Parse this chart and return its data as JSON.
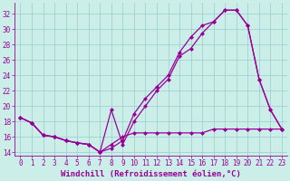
{
  "xlabel": "Windchill (Refroidissement éolien,°C)",
  "bg_color": "#cceee8",
  "line_color": "#990099",
  "grid_color": "#99cccc",
  "xlim": [
    -0.5,
    23.5
  ],
  "ylim": [
    13.5,
    33.5
  ],
  "xticks": [
    0,
    1,
    2,
    3,
    4,
    5,
    6,
    7,
    8,
    9,
    10,
    11,
    12,
    13,
    14,
    15,
    16,
    17,
    18,
    19,
    20,
    21,
    22,
    23
  ],
  "yticks": [
    14,
    16,
    18,
    20,
    22,
    24,
    26,
    28,
    30,
    32
  ],
  "line1_x": [
    0,
    1,
    2,
    3,
    4,
    5,
    6,
    7,
    8,
    9,
    10,
    11,
    12,
    13,
    14,
    15,
    16,
    17,
    18,
    19,
    20,
    21,
    22,
    23
  ],
  "line1_y": [
    18.5,
    17.8,
    16.2,
    16.0,
    15.5,
    15.2,
    15.0,
    14.0,
    15.0,
    16.0,
    16.5,
    16.5,
    16.5,
    16.5,
    16.5,
    16.5,
    16.5,
    17.0,
    17.0,
    17.0,
    17.0,
    17.0,
    17.0,
    17.0
  ],
  "line2_x": [
    0,
    1,
    2,
    3,
    4,
    5,
    6,
    7,
    8,
    9,
    10,
    11,
    12,
    13,
    14,
    15,
    16,
    17,
    18,
    19,
    20,
    21,
    22,
    23
  ],
  "line2_y": [
    18.5,
    17.8,
    16.2,
    16.0,
    15.5,
    15.2,
    15.0,
    14.0,
    19.5,
    15.0,
    18.0,
    20.0,
    22.0,
    23.5,
    26.5,
    27.5,
    29.5,
    31.0,
    32.5,
    32.5,
    30.5,
    23.5,
    19.5,
    17.0
  ],
  "line3_x": [
    0,
    1,
    2,
    3,
    4,
    5,
    6,
    7,
    8,
    9,
    10,
    11,
    12,
    13,
    14,
    15,
    16,
    17,
    18,
    19,
    20,
    21,
    22,
    23
  ],
  "line3_y": [
    18.5,
    17.8,
    16.2,
    16.0,
    15.5,
    15.2,
    15.0,
    14.0,
    14.5,
    15.5,
    19.0,
    21.0,
    22.5,
    24.0,
    27.0,
    29.0,
    30.5,
    31.0,
    32.5,
    32.5,
    30.5,
    23.5,
    19.5,
    17.0
  ],
  "marker": "D",
  "markersize": 2.5,
  "linewidth": 0.9,
  "xlabel_fontsize": 6.5,
  "tick_fontsize": 5.5
}
